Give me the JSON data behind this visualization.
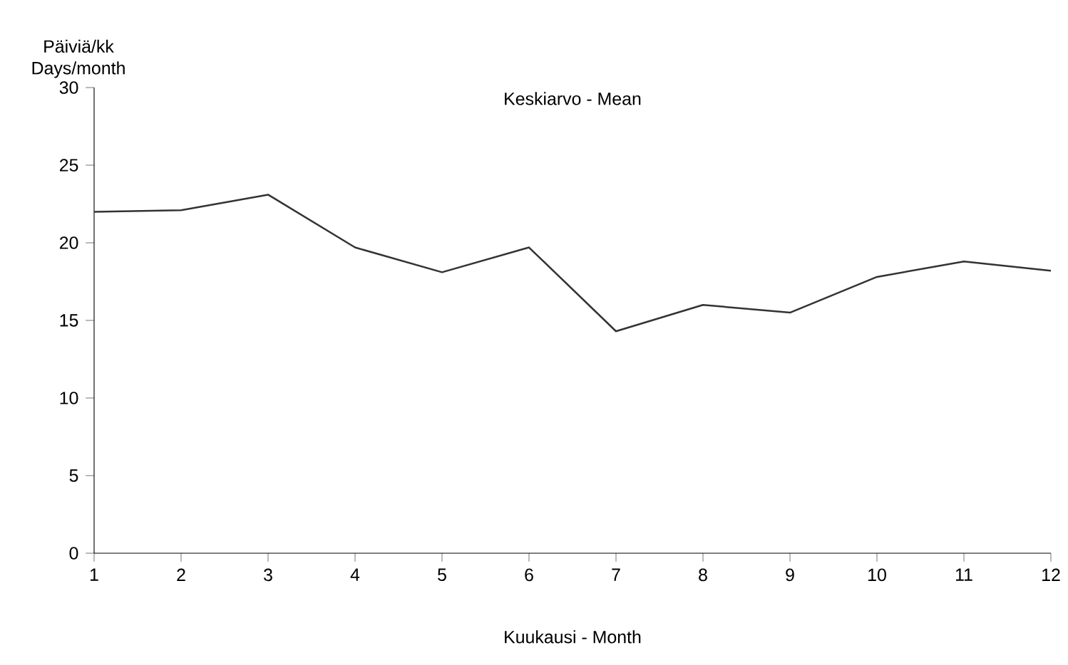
{
  "chart_data": {
    "type": "line",
    "title": "Keskiarvo - Mean",
    "xlabel": "Kuukausi - Month",
    "ylabel": "Päiviä/kk\nDays/month",
    "x": [
      1,
      2,
      3,
      4,
      5,
      6,
      7,
      8,
      9,
      10,
      11,
      12
    ],
    "series": [
      {
        "color": "#333333",
        "values": [
          22.0,
          22.1,
          23.1,
          19.7,
          18.1,
          19.7,
          14.3,
          16.0,
          15.5,
          17.8,
          18.8,
          18.2
        ]
      }
    ],
    "xlim": [
      1,
      12
    ],
    "ylim": [
      0,
      30
    ],
    "xticks": [
      1,
      2,
      3,
      4,
      5,
      6,
      7,
      8,
      9,
      10,
      11,
      12
    ],
    "yticks": [
      0,
      5,
      10,
      15,
      20,
      25,
      30
    ],
    "grid": false,
    "marker": "none",
    "line_style": "solid"
  }
}
